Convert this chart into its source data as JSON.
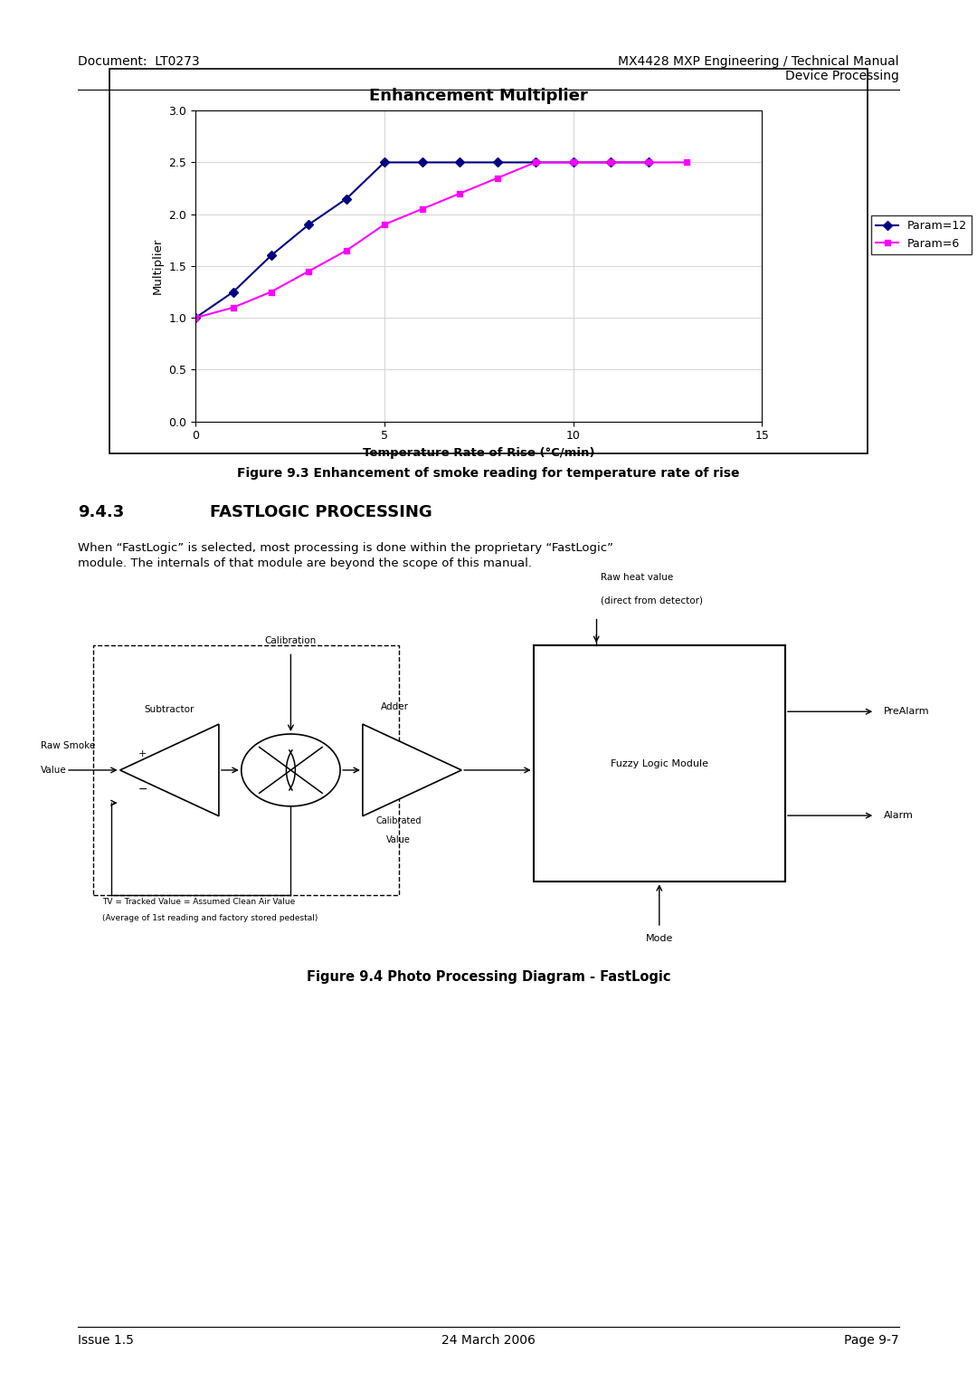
{
  "page_title_left": "Document:  LT0273",
  "page_title_right": "MX4428 MXP Engineering / Technical Manual\nDevice Processing",
  "chart_title": "Enhancement Multiplier",
  "xlabel": "Temperature Rate of Rise (°C/min)",
  "ylabel": "Multiplier",
  "xlim": [
    0,
    15
  ],
  "ylim": [
    0,
    3
  ],
  "xticks": [
    0,
    5,
    10,
    15
  ],
  "yticks": [
    0,
    0.5,
    1,
    1.5,
    2,
    2.5,
    3
  ],
  "param12_x": [
    0,
    1,
    2,
    3,
    4,
    5,
    6,
    7,
    8,
    9,
    10,
    11,
    12
  ],
  "param12_y": [
    1.0,
    1.25,
    1.6,
    1.9,
    2.15,
    2.5,
    2.5,
    2.5,
    2.5,
    2.5,
    2.5,
    2.5,
    2.5
  ],
  "param6_x": [
    0,
    1,
    2,
    3,
    4,
    5,
    6,
    7,
    8,
    9,
    10,
    11,
    12,
    13
  ],
  "param6_y": [
    1.0,
    1.1,
    1.25,
    1.45,
    1.65,
    1.9,
    2.05,
    2.2,
    2.35,
    2.5,
    2.5,
    2.5,
    2.5,
    2.5
  ],
  "param12_color": "#000080",
  "param6_color": "#FF00FF",
  "legend_param12": "Param=12",
  "legend_param6": "Param=6",
  "fig93_caption": "Figure 9.3 Enhancement of smoke reading for temperature rate of rise",
  "section_number": "9.4.3",
  "section_title": "FASTLOGIC PROCESSING",
  "section_body": "When “FastLogic” is selected, most processing is done within the proprietary “FastLogic”\nmodule. The internals of that module are beyond the scope of this manual.",
  "fig94_caption": "Figure 9.4 Photo Processing Diagram - FastLogic",
  "footer_left": "Issue 1.5",
  "footer_center": "24 March 2006",
  "footer_right": "Page 9-7",
  "bg_color": "#ffffff"
}
